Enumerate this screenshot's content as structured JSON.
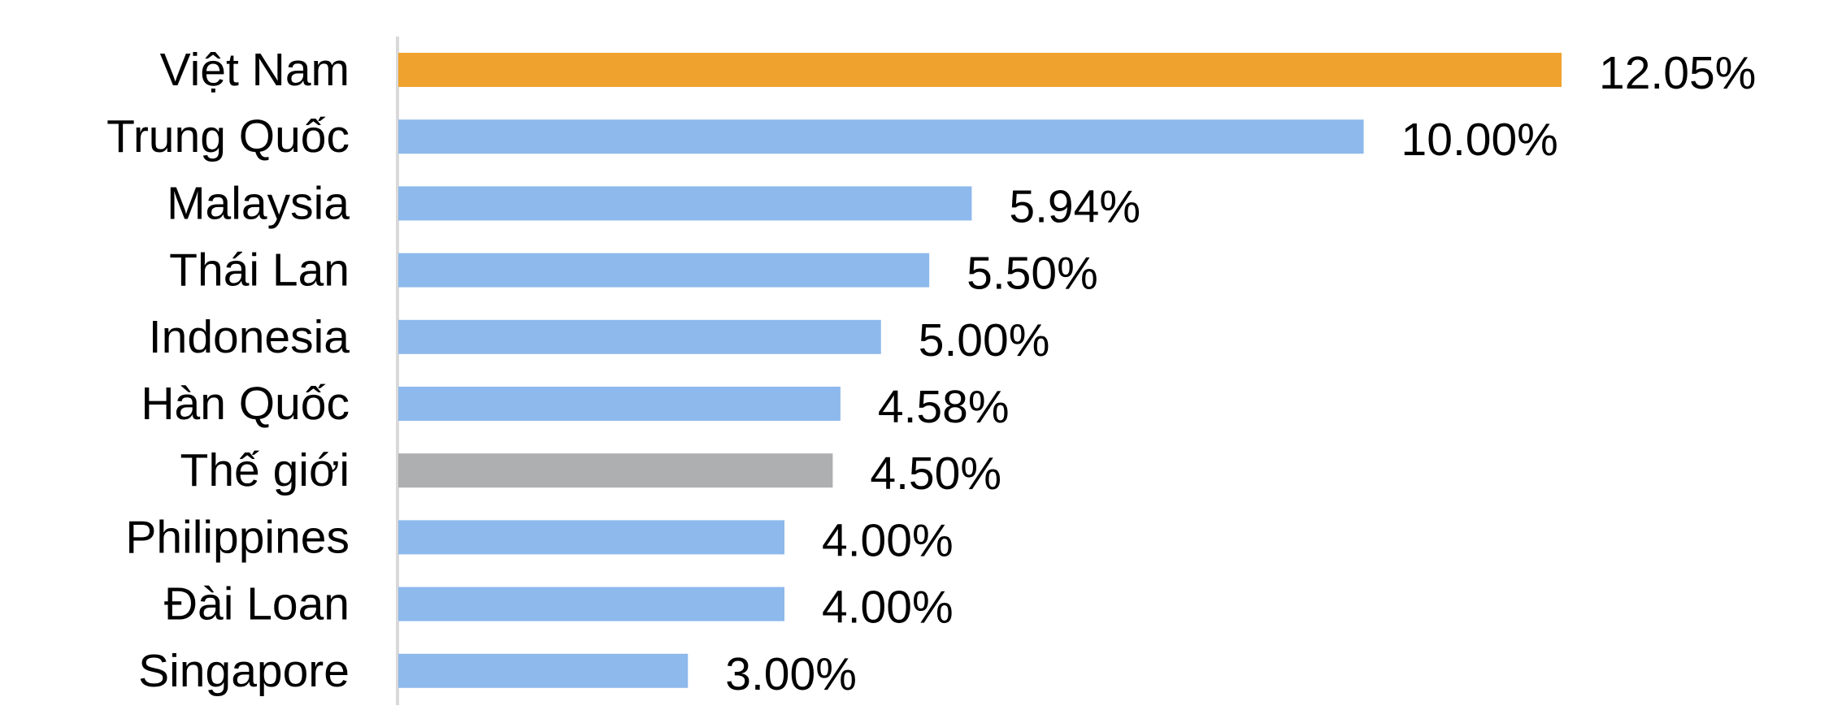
{
  "chart_data": {
    "type": "bar",
    "orientation": "horizontal",
    "title": "",
    "xlabel": "",
    "ylabel": "",
    "categories": [
      "Việt Nam",
      "Trung Quốc",
      "Malaysia",
      "Thái Lan",
      "Indonesia",
      "Hàn Quốc",
      "Thế giới",
      "Philippines",
      "Đài Loan",
      "Singapore"
    ],
    "values": [
      12.05,
      10.0,
      5.94,
      5.5,
      5.0,
      4.58,
      4.5,
      4.0,
      4.0,
      3.0
    ],
    "value_labels": [
      "12.05%",
      "10.00%",
      "5.94%",
      "5.50%",
      "5.00%",
      "4.58%",
      "4.50%",
      "4.00%",
      "4.00%",
      "3.00%"
    ],
    "unit": "%",
    "xlim": [
      0,
      12.05
    ],
    "grid": false,
    "legend": "none",
    "colors": {
      "default": "#8DB9EC",
      "highlight": "#F0A22E",
      "world": "#AEAFB1",
      "axis_line": "#D9D9D9"
    },
    "bar_colors": [
      "highlight",
      "default",
      "default",
      "default",
      "default",
      "default",
      "world",
      "default",
      "default",
      "default"
    ]
  }
}
